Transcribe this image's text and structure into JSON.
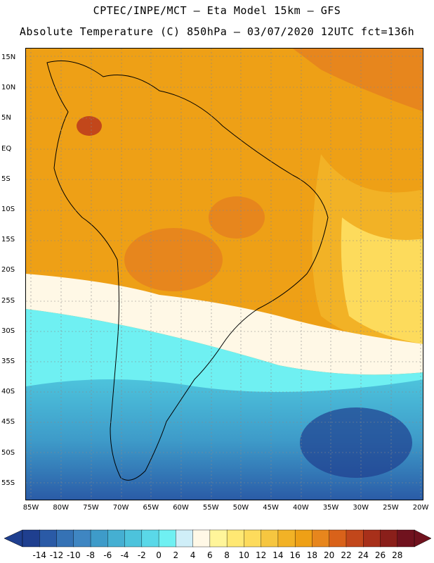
{
  "header": {
    "title_line1": "CPTEC/INPE/MCT –  Eta Model 15km – GFS",
    "title_line2": "Absolute Temperature (C) 850hPa – 03/07/2020 12UTC fct=136h"
  },
  "map": {
    "lat_labels": [
      "15N",
      "10N",
      "5N",
      "EQ",
      "5S",
      "10S",
      "15S",
      "20S",
      "25S",
      "30S",
      "35S",
      "40S",
      "45S",
      "50S",
      "55S"
    ],
    "lon_labels": [
      "85W",
      "80W",
      "75W",
      "70W",
      "65W",
      "60W",
      "55W",
      "50W",
      "45W",
      "40W",
      "35W",
      "30W",
      "25W",
      "20W"
    ]
  },
  "colorbar": {
    "labels": [
      "-14",
      "-12",
      "-10",
      "-8",
      "-6",
      "-4",
      "-2",
      "0",
      "2",
      "4",
      "6",
      "8",
      "10",
      "12",
      "14",
      "16",
      "18",
      "20",
      "22",
      "24",
      "26",
      "28"
    ],
    "colors": [
      "#1f3f8f",
      "#2a5aa6",
      "#3572b5",
      "#3f86c2",
      "#3e9bc9",
      "#45afd2",
      "#4dc3dc",
      "#5ad8e8",
      "#6ff0f2",
      "#cfeef8",
      "#fff8e6",
      "#fff59a",
      "#ffe873",
      "#fddb5c",
      "#f6c640",
      "#f2b226",
      "#eea016",
      "#e7861d",
      "#d9621a",
      "#c2471b",
      "#a8301a",
      "#8a1f1a",
      "#70121e"
    ]
  }
}
